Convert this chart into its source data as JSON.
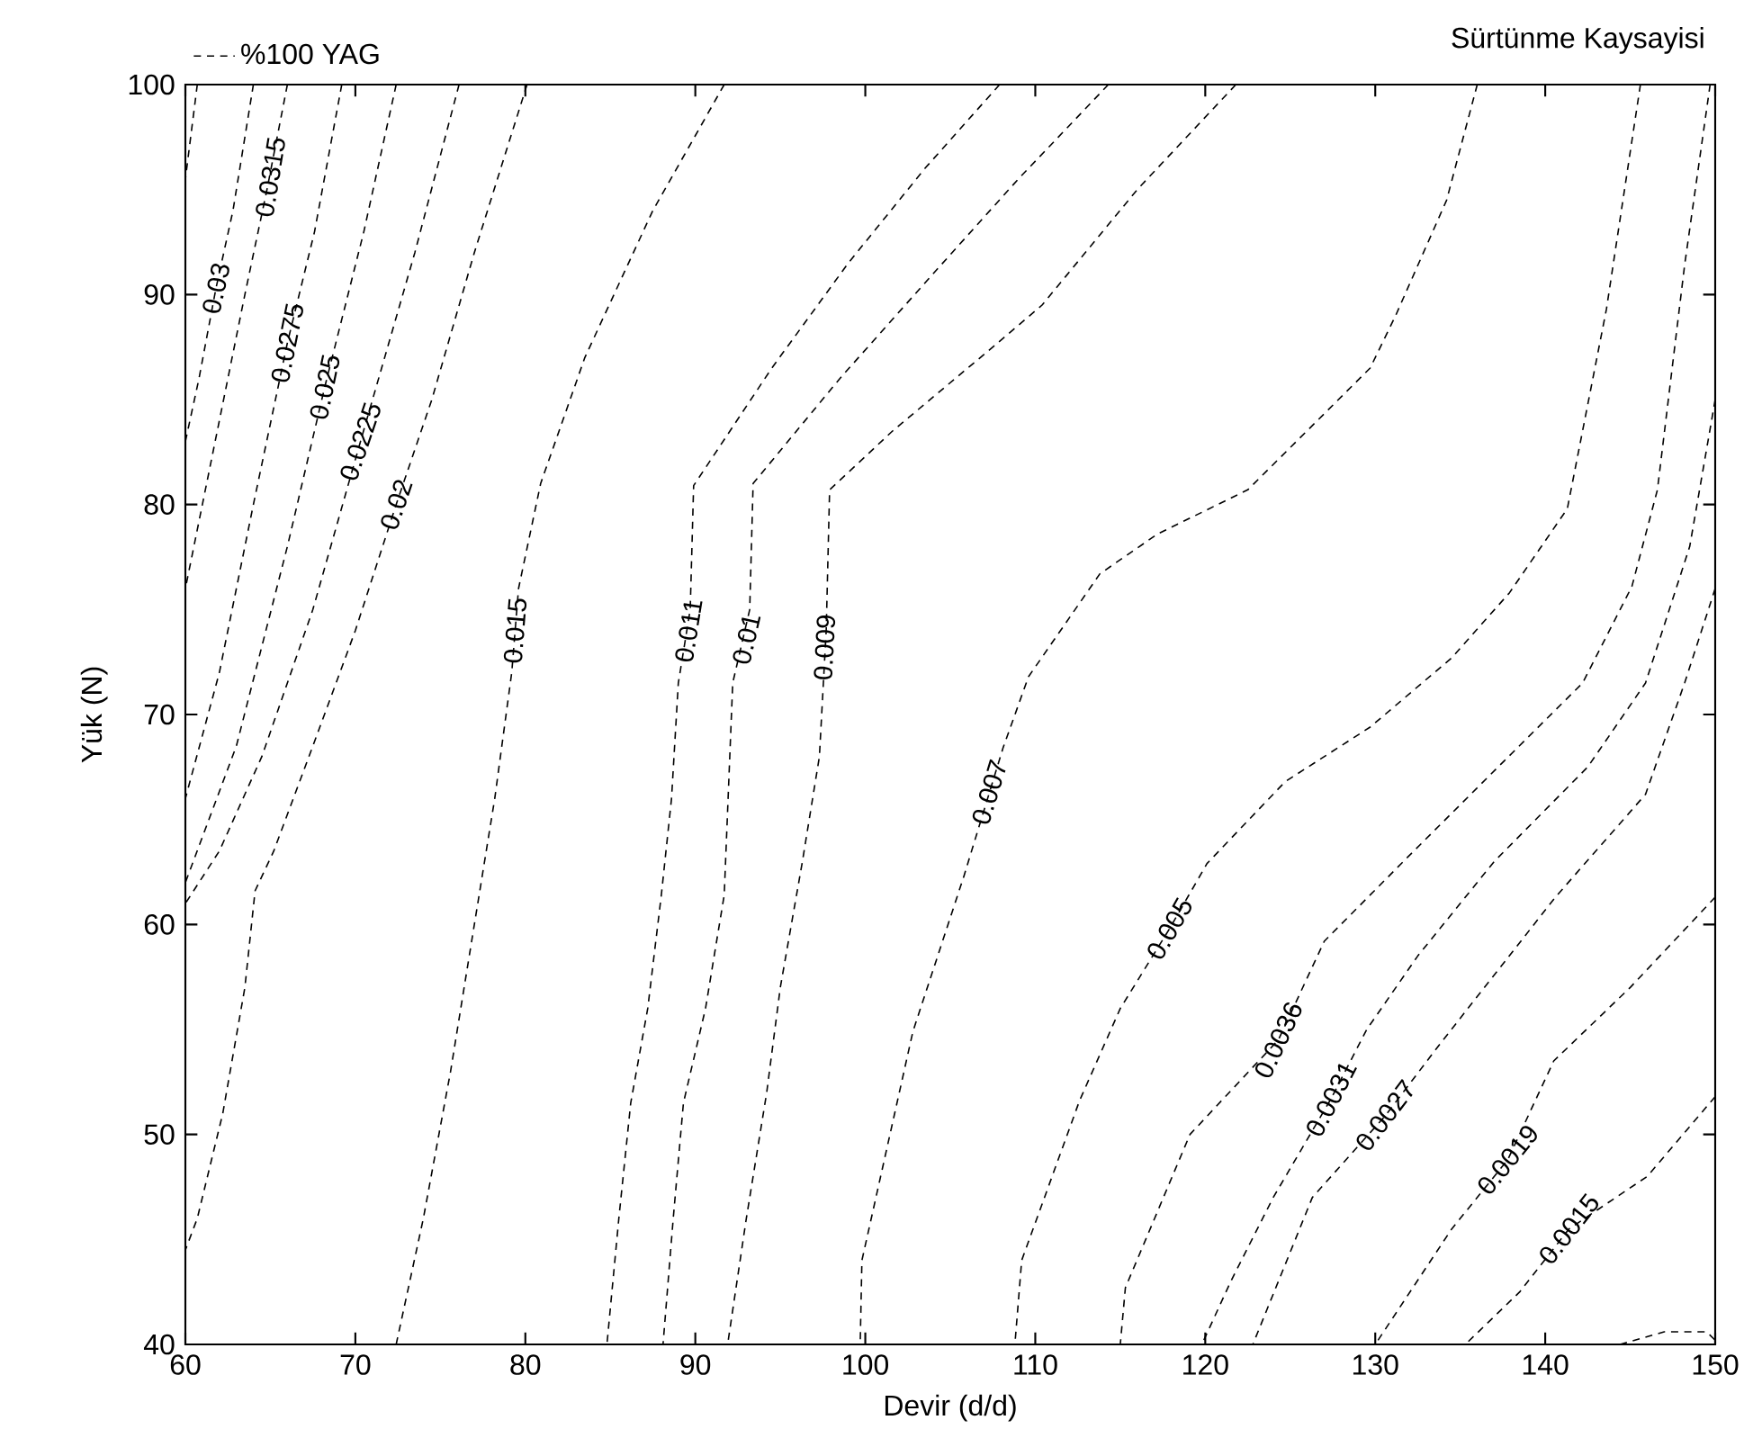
{
  "chart_data": {
    "type": "line",
    "title": "Sürtünme Kaysayisi",
    "xlabel": "Devir (d/d)",
    "ylabel": "Yük (N)",
    "xlim": [
      60,
      150
    ],
    "ylim": [
      40,
      100
    ],
    "xticks": [
      60,
      70,
      80,
      90,
      100,
      110,
      120,
      130,
      140,
      150
    ],
    "yticks": [
      40,
      50,
      60,
      70,
      80,
      90,
      100
    ],
    "legend": "top left",
    "line_style": "dashed",
    "series": [
      {
        "name": "%100 YAG",
        "color": "#000000",
        "x": [
          60.7,
          60
        ],
        "values": [
          100,
          95.5
        ]
      },
      {
        "color": "#000000",
        "x": [
          66,
          64.8,
          63.5,
          62,
          60
        ],
        "values": [
          100,
          95,
          90,
          84,
          76
        ]
      },
      {
        "color": "#000000",
        "x": [
          64,
          62.8,
          61.8,
          60.8,
          60
        ],
        "values": [
          100,
          94,
          90.3,
          86,
          83
        ]
      },
      {
        "color": "#000000",
        "x": [
          69.2,
          67.6,
          66,
          64,
          62,
          60
        ],
        "values": [
          100,
          93,
          87.7,
          80,
          72,
          66
        ]
      },
      {
        "color": "#000000",
        "x": [
          72.4,
          70.5,
          68.2,
          66,
          63,
          60
        ],
        "values": [
          100,
          93,
          85.6,
          78,
          68.5,
          62
        ]
      },
      {
        "color": "#000000",
        "x": [
          76.1,
          73.5,
          70.3,
          67.5,
          64.5,
          62,
          60
        ],
        "values": [
          100,
          92,
          83,
          75,
          68,
          63.5,
          61
        ]
      },
      {
        "color": "#000000",
        "x": [
          80.1,
          77,
          74.5,
          72.4,
          70,
          67.5,
          65.2,
          64.1,
          63.5,
          62.2,
          60.7,
          60
        ],
        "values": [
          100,
          92,
          85,
          80,
          74,
          68.5,
          63.5,
          61.6,
          57,
          51,
          46,
          44.5
        ]
      },
      {
        "color": "#000000",
        "x": [
          91.7,
          87.5,
          83.5,
          80.9,
          79.6,
          79.2,
          78.2,
          77,
          75.6,
          74,
          72.4
        ],
        "values": [
          100,
          94,
          87,
          81,
          76,
          72,
          66,
          60,
          53,
          46,
          40
        ]
      },
      {
        "color": "#000000",
        "x": [
          107.9,
          103.5,
          99,
          94.5,
          89.9,
          89.7,
          89,
          88.6,
          88,
          87.2,
          86.2,
          85.5,
          84.8
        ],
        "values": [
          100,
          96,
          91.5,
          86.5,
          80.9,
          75,
          71.5,
          66,
          61.4,
          56,
          51.5,
          46,
          40
        ]
      },
      {
        "color": "#000000",
        "x": [
          114.3,
          109,
          104,
          98.5,
          93.4,
          93.2,
          92.2,
          91.7,
          90.6,
          89.3,
          88.7,
          88.1
        ],
        "values": [
          100,
          95.5,
          91,
          86,
          81,
          75,
          71.5,
          61.4,
          56,
          51.5,
          46,
          40
        ]
      },
      {
        "color": "#000000",
        "x": [
          121.8,
          116,
          110.4,
          107.8,
          101.6,
          97.9,
          97.7,
          97.3,
          96.3,
          95,
          94.2,
          93,
          91.9
        ],
        "values": [
          100,
          95,
          89.5,
          87.7,
          83.5,
          80.7,
          74,
          68,
          63,
          57,
          52,
          46,
          40
        ]
      },
      {
        "color": "#000000",
        "x": [
          136,
          134.2,
          131.2,
          129.7,
          122.5,
          117.2,
          113.8,
          109.6,
          108.1,
          105.8,
          102.8,
          99.8,
          99.7
        ],
        "values": [
          100,
          94.5,
          89,
          86.5,
          80.7,
          78.6,
          76.7,
          71.8,
          68.4,
          62.3,
          54.9,
          44,
          40
        ]
      },
      {
        "color": "#000000",
        "x": [
          145.6,
          143.6,
          141.3,
          137.9,
          134.5,
          129.7,
          124.7,
          120.1,
          117.9,
          115,
          112.6,
          109.2,
          108.8
        ],
        "values": [
          100,
          89.3,
          79.8,
          75.8,
          72.7,
          69.4,
          66.8,
          62.9,
          59.8,
          56,
          51.6,
          44,
          40
        ]
      },
      {
        "color": "#000000",
        "x": [
          149.7,
          148.2,
          146.6,
          145.1,
          142.2,
          137.6,
          131.9,
          127,
          124.3,
          119.1,
          115.3,
          115
        ],
        "values": [
          100,
          91.4,
          80.7,
          76.1,
          71.5,
          67.8,
          63.2,
          59.2,
          54.5,
          50,
          42.7,
          40
        ]
      },
      {
        "color": "#000000",
        "x": [
          150,
          148.5,
          145.9,
          142.5,
          137,
          132.5,
          129.5,
          127.4,
          124,
          121.5,
          119.8
        ],
        "values": [
          85,
          78,
          71.5,
          67.5,
          63,
          58.5,
          55,
          51.7,
          47,
          43,
          40
        ]
      },
      {
        "color": "#000000",
        "x": [
          150,
          148.2,
          145.9,
          140.6,
          133.8,
          130.6,
          126.3,
          122.8
        ],
        "values": [
          76,
          71.5,
          66.2,
          61.3,
          54.3,
          50.9,
          47,
          40
        ]
      },
      {
        "color": "#000000",
        "x": [
          150,
          145,
          140.5,
          137.8,
          134.5,
          130
        ],
        "values": [
          61.3,
          57,
          53.5,
          48.8,
          45.5,
          40
        ]
      },
      {
        "color": "#000000",
        "x": [
          150,
          146,
          141.4,
          138.5,
          135.3
        ],
        "values": [
          51.8,
          48,
          45.5,
          42.5,
          40
        ]
      },
      {
        "color": "#000000",
        "x": [
          144.4,
          147,
          149.5,
          150
        ],
        "values": [
          40,
          40.6,
          40.6,
          40.2
        ]
      }
    ],
    "annotations": [
      {
        "text": "0.0315",
        "x": 65,
        "y": 95.6
      },
      {
        "text": "0.03",
        "x": 61.8,
        "y": 90.3
      },
      {
        "text": "0.0275",
        "x": 66,
        "y": 87.7
      },
      {
        "text": "0.025",
        "x": 68.2,
        "y": 85.6
      },
      {
        "text": "0.0225",
        "x": 70.3,
        "y": 83
      },
      {
        "text": "0.02",
        "x": 72.4,
        "y": 80
      },
      {
        "text": "0.015",
        "x": 79.4,
        "y": 74
      },
      {
        "text": "0.011",
        "x": 89.6,
        "y": 74
      },
      {
        "text": "0.01",
        "x": 93,
        "y": 73.6
      },
      {
        "text": "0.009",
        "x": 97.6,
        "y": 73.2
      },
      {
        "text": "0.007",
        "x": 107.3,
        "y": 66.3
      },
      {
        "text": "0.005",
        "x": 117.9,
        "y": 59.8
      },
      {
        "text": "0.0036",
        "x": 124.3,
        "y": 54.5
      },
      {
        "text": "0.0031",
        "x": 127.4,
        "y": 51.7
      },
      {
        "text": "0.0027",
        "x": 130.6,
        "y": 50.9
      },
      {
        "text": "0.0019",
        "x": 137.8,
        "y": 48.8
      },
      {
        "text": "0.0015",
        "x": 141.4,
        "y": 45.5
      }
    ]
  }
}
